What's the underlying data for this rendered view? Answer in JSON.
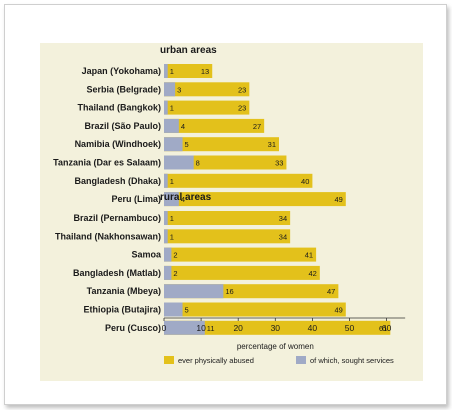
{
  "chart_data": {
    "type": "bar",
    "orientation": "horizontal",
    "xlabel": "percentage of women",
    "xlim": [
      0,
      65
    ],
    "xticks": [
      0,
      10,
      20,
      30,
      40,
      50,
      60
    ],
    "grid": false,
    "legend_placement": "bottom",
    "colors": {
      "abused": "#e3c11b",
      "sought": "#a0aac6",
      "panel": "#f3f1dc"
    },
    "series": [
      {
        "name": "ever physically abused",
        "key": "abused"
      },
      {
        "name": "of which, sought services",
        "key": "sought"
      }
    ],
    "groups": [
      {
        "title": "urban areas",
        "items": [
          {
            "label": "Japan (Yokohama)",
            "abused": 13,
            "sought": 1
          },
          {
            "label": "Serbia (Belgrade)",
            "abused": 23,
            "sought": 3
          },
          {
            "label": "Thailand (Bangkok)",
            "abused": 23,
            "sought": 1
          },
          {
            "label": "Brazil (São Paulo)",
            "abused": 27,
            "sought": 4
          },
          {
            "label": "Namibia (Windhoek)",
            "abused": 31,
            "sought": 5
          },
          {
            "label": "Tanzania (Dar es Salaam)",
            "abused": 33,
            "sought": 8
          },
          {
            "label": "Bangladesh (Dhaka)",
            "abused": 40,
            "sought": 1
          },
          {
            "label": "Peru (Lima)",
            "abused": 49,
            "sought": 4
          }
        ]
      },
      {
        "title": "rural areas",
        "items": [
          {
            "label": "Brazil (Pernambuco)",
            "abused": 34,
            "sought": 1
          },
          {
            "label": "Thailand (Nakhonsawan)",
            "abused": 34,
            "sought": 1
          },
          {
            "label": "Samoa",
            "abused": 41,
            "sought": 2
          },
          {
            "label": "Bangladesh (Matlab)",
            "abused": 42,
            "sought": 2
          },
          {
            "label": "Tanzania (Mbeya)",
            "abused": 47,
            "sought": 16
          },
          {
            "label": "Ethiopia (Butajira)",
            "abused": 49,
            "sought": 5
          },
          {
            "label": "Peru (Cusco)",
            "abused": 61,
            "sought": 11
          }
        ]
      }
    ]
  }
}
